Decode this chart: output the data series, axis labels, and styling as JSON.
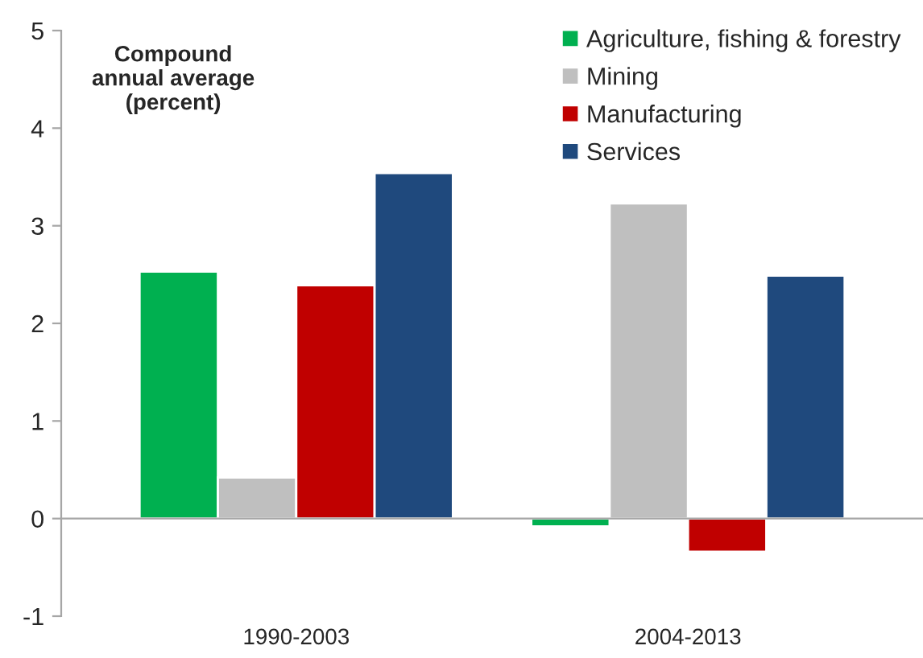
{
  "chart_data": {
    "type": "bar",
    "categories": [
      "1990-2003",
      "2004-2013"
    ],
    "series": [
      {
        "name": "Agriculture, fishing & forestry",
        "color": "#00b050",
        "values": [
          2.53,
          -0.08
        ]
      },
      {
        "name": "Mining",
        "color": "#bfbfbf",
        "values": [
          0.42,
          3.23
        ]
      },
      {
        "name": "Manufacturing",
        "color": "#c00000",
        "values": [
          2.39,
          -0.34
        ]
      },
      {
        "name": "Services",
        "color": "#1f497d",
        "values": [
          3.54,
          2.49
        ]
      }
    ],
    "ylim": [
      -1,
      5
    ],
    "yticks": [
      -1,
      0,
      1,
      2,
      3,
      4,
      5
    ],
    "annotations": [
      "Compound\nannual average\n(percent)"
    ],
    "legend": "top right"
  }
}
